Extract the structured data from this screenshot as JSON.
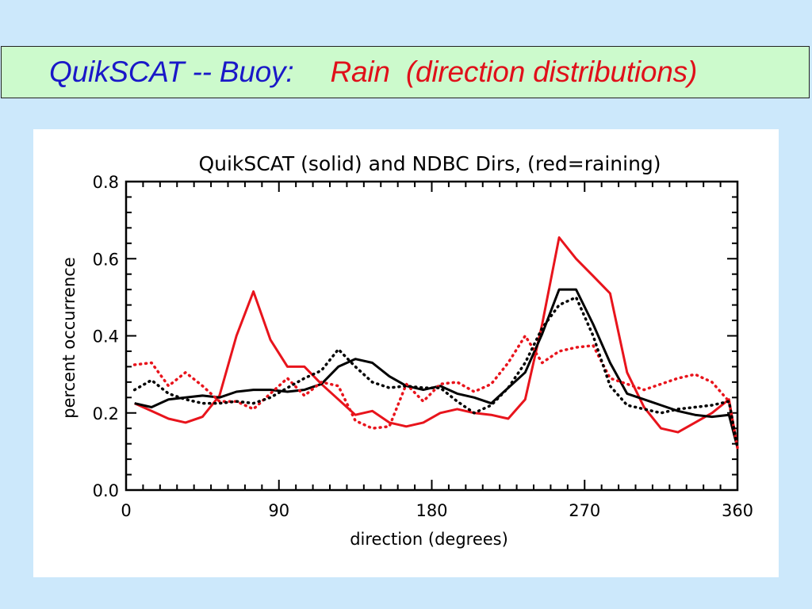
{
  "slide": {
    "title_left": "QuikSCAT -- Buoy:",
    "title_right": "Rain  (direction distributions)",
    "title_left_color": "#1a18c8",
    "title_right_color": "#e0101a",
    "background_color": "#cce8fb",
    "title_bar_color": "#ccfacc"
  },
  "chart_data": {
    "type": "line",
    "title": "QuikSCAT (solid) and NDBC Dirs, (red=raining)",
    "xlabel": "direction (degrees)",
    "ylabel": "percent occurrence",
    "xlim": [
      0,
      360
    ],
    "ylim": [
      0.0,
      0.8
    ],
    "xticks": [
      0,
      90,
      180,
      270,
      360
    ],
    "xtick_labels": [
      "0",
      "90",
      "180",
      "270",
      "360"
    ],
    "yticks": [
      0.0,
      0.2,
      0.4,
      0.6,
      0.8
    ],
    "ytick_labels": [
      "0.0",
      "0.2",
      "0.4",
      "0.6",
      "0.8"
    ],
    "grid": false,
    "series": [
      {
        "style": "solid",
        "color": "#e8141c",
        "x": [
          5,
          15,
          25,
          35,
          45,
          55,
          65,
          75,
          85,
          95,
          105,
          115,
          125,
          135,
          145,
          155,
          165,
          175,
          185,
          195,
          205,
          215,
          225,
          235,
          245,
          255,
          265,
          275,
          285,
          295,
          305,
          315,
          325,
          335,
          345,
          355,
          360
        ],
        "y": [
          0.225,
          0.205,
          0.185,
          0.175,
          0.19,
          0.245,
          0.4,
          0.515,
          0.39,
          0.32,
          0.32,
          0.275,
          0.235,
          0.195,
          0.205,
          0.175,
          0.165,
          0.175,
          0.2,
          0.21,
          0.2,
          0.195,
          0.185,
          0.235,
          0.43,
          0.655,
          0.6,
          0.555,
          0.51,
          0.305,
          0.215,
          0.16,
          0.15,
          0.175,
          0.2,
          0.235,
          0.11
        ]
      },
      {
        "style": "solid",
        "color": "#000000",
        "x": [
          5,
          15,
          25,
          35,
          45,
          55,
          65,
          75,
          85,
          95,
          105,
          115,
          125,
          135,
          145,
          155,
          165,
          175,
          185,
          195,
          205,
          215,
          225,
          235,
          245,
          255,
          265,
          275,
          285,
          295,
          305,
          315,
          325,
          335,
          345,
          355,
          360
        ],
        "y": [
          0.225,
          0.215,
          0.235,
          0.24,
          0.245,
          0.24,
          0.255,
          0.26,
          0.26,
          0.255,
          0.26,
          0.275,
          0.32,
          0.34,
          0.33,
          0.295,
          0.27,
          0.26,
          0.27,
          0.25,
          0.24,
          0.225,
          0.265,
          0.305,
          0.405,
          0.52,
          0.52,
          0.43,
          0.33,
          0.25,
          0.235,
          0.22,
          0.205,
          0.195,
          0.19,
          0.195,
          0.11
        ]
      },
      {
        "style": "dotted",
        "color": "#e8141c",
        "x": [
          5,
          15,
          25,
          35,
          45,
          55,
          65,
          75,
          85,
          95,
          105,
          115,
          125,
          135,
          145,
          155,
          165,
          175,
          185,
          195,
          205,
          215,
          225,
          235,
          245,
          255,
          265,
          275,
          285,
          295,
          305,
          315,
          325,
          335,
          345,
          355,
          360
        ],
        "y": [
          0.325,
          0.33,
          0.27,
          0.305,
          0.27,
          0.23,
          0.23,
          0.21,
          0.25,
          0.29,
          0.245,
          0.28,
          0.27,
          0.18,
          0.16,
          0.165,
          0.275,
          0.23,
          0.275,
          0.28,
          0.255,
          0.275,
          0.33,
          0.4,
          0.33,
          0.36,
          0.37,
          0.375,
          0.29,
          0.275,
          0.26,
          0.275,
          0.29,
          0.3,
          0.28,
          0.23,
          0.11
        ]
      },
      {
        "style": "dotted",
        "color": "#000000",
        "x": [
          5,
          15,
          25,
          35,
          45,
          55,
          65,
          75,
          85,
          95,
          105,
          115,
          125,
          135,
          145,
          155,
          165,
          175,
          185,
          195,
          205,
          215,
          225,
          235,
          245,
          255,
          265,
          275,
          285,
          295,
          305,
          315,
          325,
          335,
          345,
          355,
          360
        ],
        "y": [
          0.26,
          0.285,
          0.25,
          0.235,
          0.225,
          0.225,
          0.23,
          0.225,
          0.24,
          0.265,
          0.29,
          0.31,
          0.365,
          0.32,
          0.28,
          0.265,
          0.27,
          0.265,
          0.265,
          0.23,
          0.2,
          0.22,
          0.265,
          0.33,
          0.42,
          0.48,
          0.5,
          0.4,
          0.27,
          0.22,
          0.21,
          0.2,
          0.21,
          0.215,
          0.22,
          0.23,
          0.11
        ]
      }
    ]
  }
}
